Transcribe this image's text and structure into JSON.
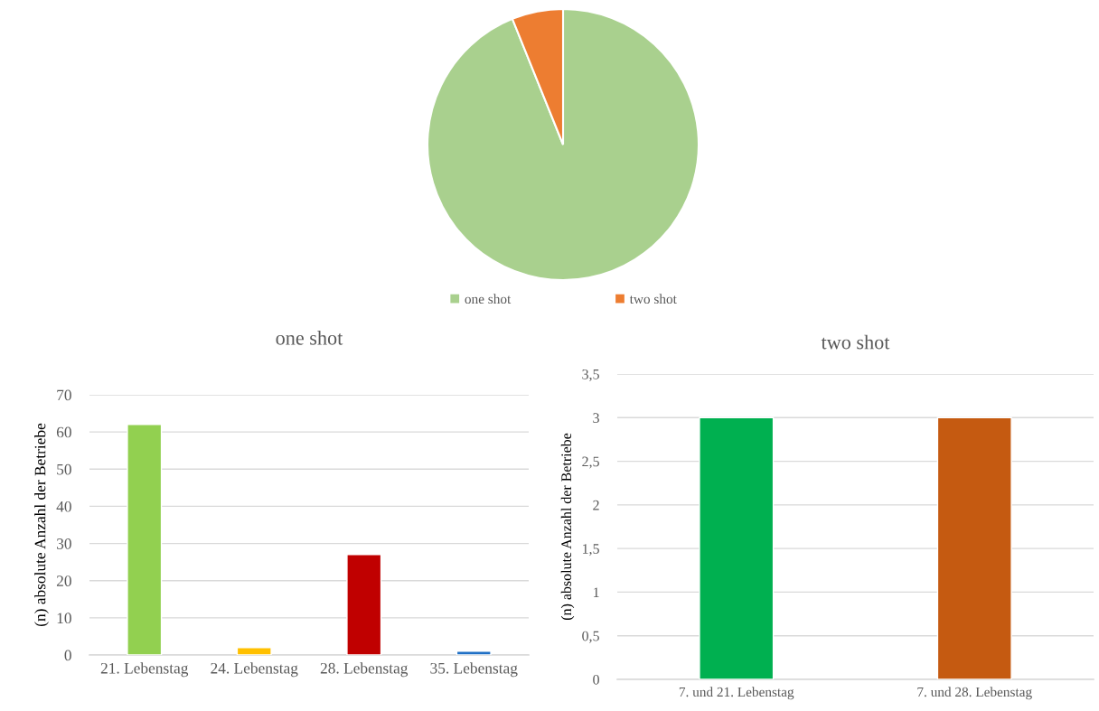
{
  "chart_data": [
    {
      "type": "pie",
      "categories": [
        "one shot",
        "two shot"
      ],
      "values": [
        93.9,
        6.1
      ],
      "colors": [
        "#a9d08e",
        "#ed7d31"
      ],
      "legend": "bottom"
    },
    {
      "type": "bar",
      "title": "one shot",
      "ylabel": "(n) absolute Anzahl der Betriebe",
      "categories": [
        "21. Lebenstag",
        "24. Lebenstag",
        "28. Lebenstag",
        "35. Lebenstag"
      ],
      "values": [
        62,
        2,
        27,
        1
      ],
      "colors": [
        "#92d050",
        "#ffc000",
        "#c00000",
        "#1f6fc5"
      ],
      "ylim": [
        0,
        70
      ],
      "yticks": [
        0,
        10,
        20,
        30,
        40,
        50,
        60,
        70
      ],
      "grid": "y"
    },
    {
      "type": "bar",
      "title": "two shot",
      "ylabel": "(n) absolute Anzahl der Betriebe",
      "categories": [
        "7. und 21. Lebenstag",
        "7. und 28. Lebenstag"
      ],
      "values": [
        3,
        3
      ],
      "colors": [
        "#00b050",
        "#c55a11"
      ],
      "ylim": [
        0,
        3.5
      ],
      "yticks": [
        0,
        {
          "value": 0.5,
          "label": "0,5"
        },
        1,
        {
          "value": 1.5,
          "label": "1,5"
        },
        2,
        {
          "value": 2.5,
          "label": "2,5"
        },
        3,
        {
          "value": 3.5,
          "label": "3,5"
        }
      ],
      "grid": "y"
    }
  ]
}
